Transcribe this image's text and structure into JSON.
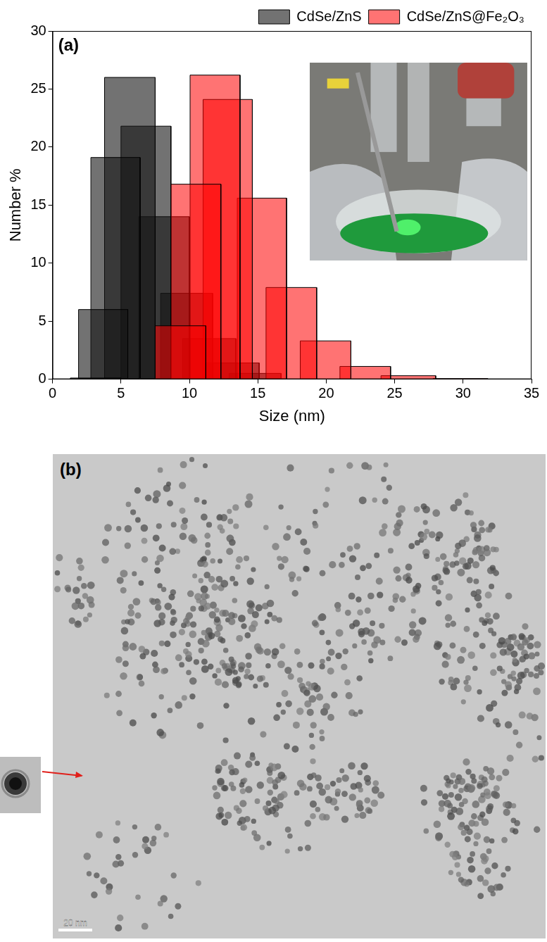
{
  "chart_data": {
    "type": "bar",
    "panel_label": "(a)",
    "x_label": "Size (nm)",
    "y_label": "Number %",
    "xlim": [
      0,
      35
    ],
    "xticks": [
      0,
      5,
      10,
      15,
      20,
      25,
      30,
      35
    ],
    "ylim": [
      0,
      30
    ],
    "yticks": [
      0,
      5,
      10,
      15,
      20,
      25,
      30
    ],
    "grid": false,
    "legend": "top right",
    "series": [
      {
        "name": "CdSe/ZnS",
        "color": "#000000",
        "bin_start": [
          1.3,
          1.9,
          2.8,
          3.8,
          5.0,
          6.3,
          7.9,
          9.5,
          11.2,
          12.9
        ],
        "bin_end": [
          5.0,
          5.5,
          6.4,
          7.5,
          8.65,
          10.0,
          11.7,
          13.4,
          15.1,
          16.7
        ],
        "values": [
          0.1,
          6,
          19.1,
          26,
          21.8,
          14,
          7.4,
          3.5,
          1.4,
          0.5
        ]
      },
      {
        "name": "CdSe/ZnS@Fe₂O₃",
        "color": "#ff0000",
        "bin_start": [
          7.5,
          8.65,
          10.05,
          11.0,
          13.5,
          15.6,
          18.1,
          21.0,
          24.0,
          27.8
        ],
        "bin_end": [
          11.2,
          12.3,
          13.7,
          14.6,
          17.1,
          19.3,
          21.8,
          24.7,
          28.0,
          31.8
        ],
        "values": [
          4.6,
          16.8,
          26.2,
          24.1,
          15.6,
          7.9,
          3.3,
          1.1,
          0.3,
          0.05
        ]
      }
    ]
  },
  "panel_b": {
    "label": "(b)",
    "scale_bar": "20 nm"
  }
}
